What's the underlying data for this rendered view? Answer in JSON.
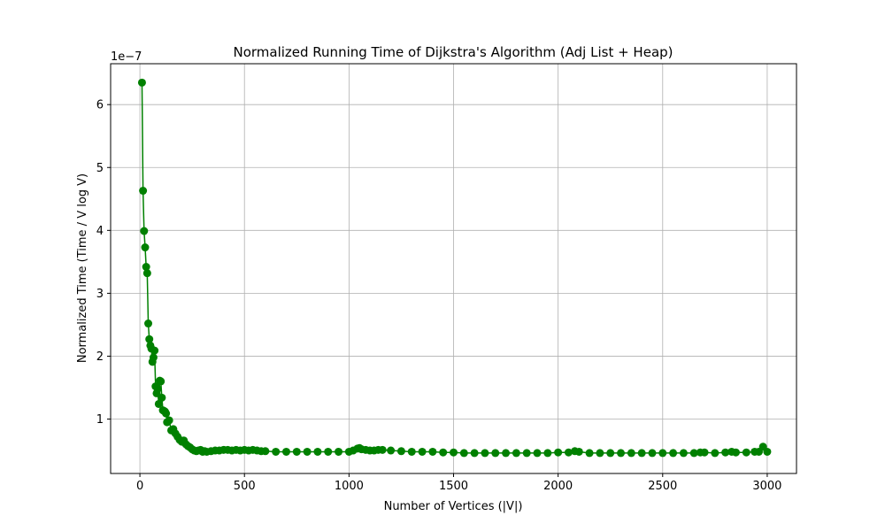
{
  "chart_data": {
    "type": "line",
    "title": "Normalized Running Time of Dijkstra's Algorithm (Adj List + Heap)",
    "xlabel": "Number of Vertices (|V|)",
    "ylabel": "Normalized Time (Time / V log V)",
    "y_offset_label": "1e−7",
    "xlim": [
      -140,
      3140
    ],
    "ylim": [
      0.135,
      6.65
    ],
    "y_scale_note": "values in units of 1e-7",
    "x_ticks": [
      0,
      500,
      1000,
      1500,
      2000,
      2500,
      3000
    ],
    "x_tick_labels": [
      "0",
      "500",
      "1000",
      "1500",
      "2000",
      "2500",
      "3000"
    ],
    "y_ticks": [
      1,
      2,
      3,
      4,
      5,
      6
    ],
    "y_tick_labels": [
      "1",
      "2",
      "3",
      "4",
      "5",
      "6"
    ],
    "grid": true,
    "legend": "none",
    "color": "#008000",
    "marker": "circle",
    "series": [
      {
        "x": [
          10,
          15,
          20,
          25,
          30,
          35,
          40,
          45,
          50,
          55,
          60,
          65,
          70,
          75,
          80,
          85,
          90,
          95,
          100,
          105,
          110,
          115,
          120,
          125,
          130,
          140,
          150,
          160,
          170,
          180,
          190,
          200,
          210,
          220,
          230,
          240,
          250,
          260,
          270,
          280,
          290,
          300,
          310,
          320,
          340,
          360,
          380,
          400,
          420,
          440,
          460,
          480,
          500,
          520,
          540,
          560,
          580,
          600,
          650,
          700,
          750,
          800,
          850,
          900,
          950,
          1000,
          1020,
          1040,
          1050,
          1060,
          1080,
          1100,
          1120,
          1140,
          1160,
          1200,
          1250,
          1300,
          1350,
          1400,
          1450,
          1500,
          1550,
          1600,
          1650,
          1700,
          1750,
          1800,
          1850,
          1900,
          1950,
          2000,
          2050,
          2080,
          2100,
          2150,
          2200,
          2250,
          2300,
          2350,
          2400,
          2450,
          2500,
          2550,
          2600,
          2650,
          2680,
          2700,
          2750,
          2800,
          2830,
          2850,
          2900,
          2940,
          2960,
          2980,
          3000
        ],
        "y": [
          6.35,
          4.63,
          3.99,
          3.73,
          3.42,
          3.32,
          2.52,
          2.27,
          2.17,
          2.12,
          1.91,
          1.98,
          2.09,
          1.52,
          1.41,
          1.48,
          1.24,
          1.61,
          1.6,
          1.34,
          1.14,
          1.13,
          1.12,
          1.09,
          0.95,
          0.98,
          0.82,
          0.84,
          0.77,
          0.72,
          0.67,
          0.64,
          0.66,
          0.6,
          0.57,
          0.55,
          0.52,
          0.5,
          0.49,
          0.5,
          0.51,
          0.48,
          0.49,
          0.48,
          0.49,
          0.5,
          0.5,
          0.51,
          0.51,
          0.5,
          0.51,
          0.5,
          0.51,
          0.5,
          0.51,
          0.5,
          0.49,
          0.49,
          0.48,
          0.48,
          0.48,
          0.48,
          0.48,
          0.48,
          0.48,
          0.48,
          0.5,
          0.53,
          0.54,
          0.52,
          0.51,
          0.5,
          0.5,
          0.51,
          0.51,
          0.5,
          0.49,
          0.48,
          0.48,
          0.48,
          0.47,
          0.47,
          0.46,
          0.46,
          0.46,
          0.46,
          0.46,
          0.46,
          0.46,
          0.46,
          0.46,
          0.47,
          0.47,
          0.49,
          0.48,
          0.46,
          0.46,
          0.46,
          0.46,
          0.46,
          0.46,
          0.46,
          0.46,
          0.46,
          0.46,
          0.46,
          0.47,
          0.47,
          0.46,
          0.47,
          0.48,
          0.47,
          0.47,
          0.48,
          0.48,
          0.56,
          0.48
        ]
      }
    ]
  }
}
